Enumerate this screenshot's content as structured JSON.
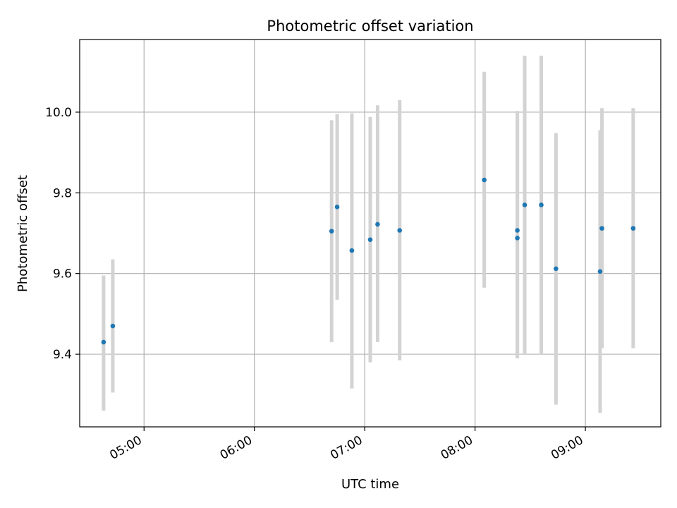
{
  "chart_data": {
    "type": "scatter",
    "title": "Photometric offset variation",
    "xlabel": "UTC time",
    "ylabel": "Photometric offset",
    "xlim": [
      "04:25",
      "09:41"
    ],
    "ylim": [
      9.22,
      10.18
    ],
    "x_ticks": [
      "05:00",
      "06:00",
      "07:00",
      "08:00",
      "09:00"
    ],
    "y_ticks": [
      "9.4",
      "9.6",
      "9.8",
      "10.0"
    ],
    "grid": true,
    "colors": {
      "points": "#1f77b4",
      "error_bars": "#d3d3d3",
      "grid": "#b0b0b0",
      "axes": "#000000"
    },
    "points": [
      {
        "x": "04:38",
        "y": 9.43,
        "err_low": 9.26,
        "err_high": 9.595
      },
      {
        "x": "04:43",
        "y": 9.47,
        "err_low": 9.305,
        "err_high": 9.635
      },
      {
        "x": "06:42",
        "y": 9.705,
        "err_low": 9.43,
        "err_high": 9.98
      },
      {
        "x": "06:45",
        "y": 9.765,
        "err_low": 9.535,
        "err_high": 9.995
      },
      {
        "x": "06:53",
        "y": 9.657,
        "err_low": 9.315,
        "err_high": 9.997
      },
      {
        "x": "07:03",
        "y": 9.684,
        "err_low": 9.38,
        "err_high": 9.988
      },
      {
        "x": "07:07",
        "y": 9.722,
        "err_low": 9.43,
        "err_high": 10.017
      },
      {
        "x": "07:19",
        "y": 9.707,
        "err_low": 9.385,
        "err_high": 10.03
      },
      {
        "x": "08:05",
        "y": 9.832,
        "err_low": 9.565,
        "err_high": 10.1
      },
      {
        "x": "08:23",
        "y": 9.707,
        "err_low": 9.39,
        "err_high": 10.003
      },
      {
        "x": "08:23",
        "y": 9.688,
        "err_low": 9.39,
        "err_high": 9.985
      },
      {
        "x": "08:27",
        "y": 9.77,
        "err_low": 9.4,
        "err_high": 10.14
      },
      {
        "x": "08:36",
        "y": 9.77,
        "err_low": 9.4,
        "err_high": 10.14
      },
      {
        "x": "08:44",
        "y": 9.612,
        "err_low": 9.275,
        "err_high": 9.948
      },
      {
        "x": "09:08",
        "y": 9.605,
        "err_low": 9.255,
        "err_high": 9.955
      },
      {
        "x": "09:09",
        "y": 9.712,
        "err_low": 9.415,
        "err_high": 10.01
      },
      {
        "x": "09:26",
        "y": 9.712,
        "err_low": 9.415,
        "err_high": 10.01
      }
    ]
  }
}
